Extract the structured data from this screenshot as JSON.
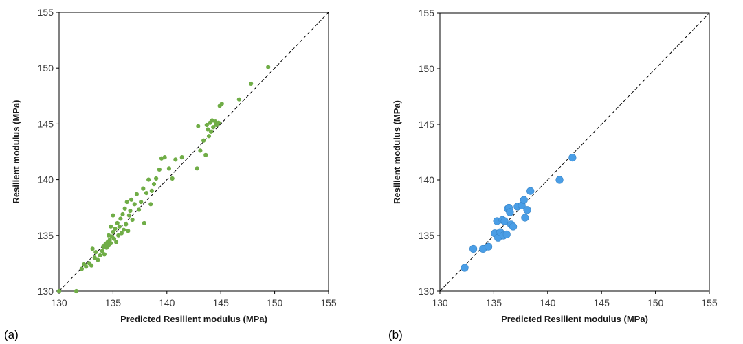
{
  "chart_data": [
    {
      "type": "scatter",
      "panel_label": "(a)",
      "xlabel": "Predicted Resilient modulus (MPa)",
      "ylabel": "Resilient modulus (MPa)",
      "xlim": [
        130,
        155
      ],
      "ylim": [
        130,
        155
      ],
      "ticks": [
        "130",
        "135",
        "140",
        "145",
        "150",
        "155"
      ],
      "reference_line": "y = x (dashed)",
      "marker_color": "#70ad47",
      "grid": false,
      "series": [
        {
          "points": [
            [
              130.0,
              130.0
            ],
            [
              131.6,
              130.0
            ],
            [
              132.1,
              132.0
            ],
            [
              132.3,
              132.4
            ],
            [
              132.5,
              132.2
            ],
            [
              132.8,
              132.5
            ],
            [
              133.0,
              132.3
            ],
            [
              133.1,
              133.8
            ],
            [
              133.3,
              133.0
            ],
            [
              133.4,
              133.5
            ],
            [
              133.6,
              132.8
            ],
            [
              133.8,
              133.2
            ],
            [
              134.0,
              133.6
            ],
            [
              134.1,
              134.0
            ],
            [
              134.2,
              133.3
            ],
            [
              134.3,
              134.2
            ],
            [
              134.4,
              133.9
            ],
            [
              134.5,
              134.4
            ],
            [
              134.6,
              134.1
            ],
            [
              134.6,
              135.0
            ],
            [
              134.7,
              134.6
            ],
            [
              134.8,
              134.3
            ],
            [
              134.8,
              135.8
            ],
            [
              134.9,
              134.9
            ],
            [
              135.0,
              136.8
            ],
            [
              135.0,
              135.3
            ],
            [
              135.1,
              134.7
            ],
            [
              135.2,
              135.6
            ],
            [
              135.3,
              134.4
            ],
            [
              135.4,
              136.1
            ],
            [
              135.5,
              135.0
            ],
            [
              135.6,
              135.8
            ],
            [
              135.7,
              136.5
            ],
            [
              135.8,
              135.2
            ],
            [
              135.9,
              136.9
            ],
            [
              136.0,
              135.5
            ],
            [
              136.1,
              137.4
            ],
            [
              136.2,
              136.0
            ],
            [
              136.3,
              138.0
            ],
            [
              136.4,
              135.4
            ],
            [
              136.5,
              136.8
            ],
            [
              136.6,
              137.2
            ],
            [
              136.7,
              138.2
            ],
            [
              136.8,
              136.4
            ],
            [
              137.0,
              137.8
            ],
            [
              137.2,
              138.7
            ],
            [
              137.4,
              137.3
            ],
            [
              137.6,
              138.0
            ],
            [
              137.8,
              139.2
            ],
            [
              137.9,
              136.1
            ],
            [
              138.1,
              138.8
            ],
            [
              138.3,
              140.0
            ],
            [
              138.5,
              137.8
            ],
            [
              138.6,
              139.0
            ],
            [
              138.8,
              139.6
            ],
            [
              139.0,
              140.1
            ],
            [
              139.3,
              140.9
            ],
            [
              139.5,
              141.9
            ],
            [
              139.8,
              142.0
            ],
            [
              140.2,
              141.0
            ],
            [
              140.5,
              140.1
            ],
            [
              140.8,
              141.8
            ],
            [
              141.4,
              142.0
            ],
            [
              142.8,
              141.0
            ],
            [
              142.9,
              144.8
            ],
            [
              143.1,
              142.6
            ],
            [
              143.4,
              143.5
            ],
            [
              143.6,
              142.2
            ],
            [
              143.7,
              144.9
            ],
            [
              143.8,
              144.5
            ],
            [
              143.9,
              143.9
            ],
            [
              144.0,
              145.1
            ],
            [
              144.1,
              144.3
            ],
            [
              144.2,
              145.3
            ],
            [
              144.3,
              144.7
            ],
            [
              144.5,
              145.2
            ],
            [
              144.6,
              144.9
            ],
            [
              144.8,
              145.1
            ],
            [
              144.9,
              146.6
            ],
            [
              145.1,
              146.8
            ],
            [
              146.7,
              147.2
            ],
            [
              147.8,
              148.6
            ],
            [
              149.4,
              150.1
            ]
          ]
        }
      ]
    },
    {
      "type": "scatter",
      "panel_label": "(b)",
      "xlabel": "Predicted Resilient modulus (MPa)",
      "ylabel": "Resilient modulus (MPa)",
      "xlim": [
        130,
        155
      ],
      "ylim": [
        130,
        155
      ],
      "ticks": [
        "130",
        "135",
        "140",
        "145",
        "150",
        "155"
      ],
      "reference_line": "y = x (dashed)",
      "marker_color": "#4a9ee6",
      "grid": false,
      "series": [
        {
          "points": [
            [
              132.3,
              132.1
            ],
            [
              133.1,
              133.8
            ],
            [
              134.0,
              133.8
            ],
            [
              134.5,
              134.0
            ],
            [
              135.1,
              135.2
            ],
            [
              135.3,
              136.3
            ],
            [
              135.4,
              134.8
            ],
            [
              135.6,
              135.3
            ],
            [
              135.8,
              136.4
            ],
            [
              135.9,
              135.0
            ],
            [
              136.0,
              136.3
            ],
            [
              136.2,
              135.1
            ],
            [
              136.3,
              137.4
            ],
            [
              136.4,
              137.5
            ],
            [
              136.5,
              137.1
            ],
            [
              136.6,
              136.0
            ],
            [
              136.8,
              135.8
            ],
            [
              137.2,
              137.6
            ],
            [
              137.6,
              137.7
            ],
            [
              137.8,
              138.2
            ],
            [
              137.9,
              136.6
            ],
            [
              138.1,
              137.3
            ],
            [
              138.4,
              139.0
            ],
            [
              141.1,
              140.0
            ],
            [
              142.3,
              142.0
            ]
          ]
        }
      ]
    }
  ]
}
